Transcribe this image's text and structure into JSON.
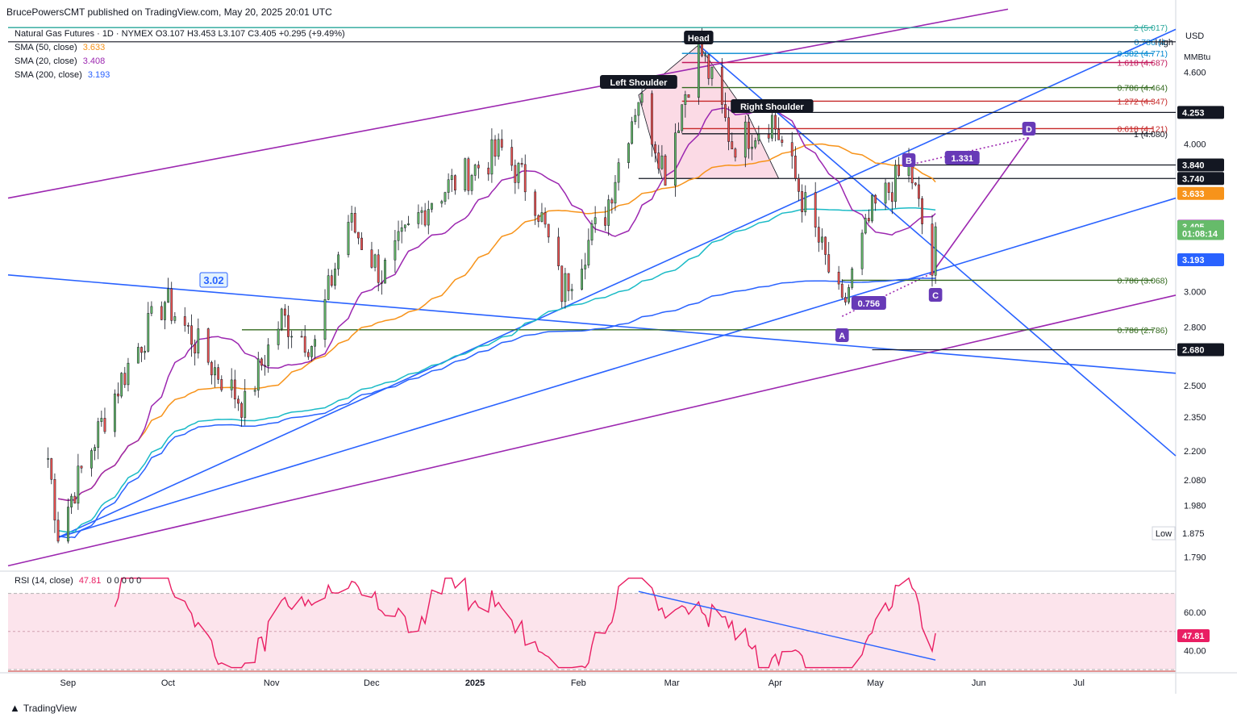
{
  "header": {
    "published": "BrucePowersCMT published on TradingView.com, May 20, 2025 20:01 UTC"
  },
  "legend": {
    "symbol_line": "Natural Gas Futures · 1D · NYMEX  O3.107  H3.453  L3.107  C3.405  +0.295 (+9.49%)",
    "sma50_label": "SMA (50, close)",
    "sma50_value": "3.633",
    "sma20_label": "SMA (20, close)",
    "sma20_value": "3.408",
    "sma200_label": "SMA (200, close)",
    "sma200_value": "3.193"
  },
  "rsi": {
    "label": "RSI (14, close)",
    "value": "47.81",
    "extra": "0 0 0 0 0",
    "ticks": [
      "60.00",
      "40.00"
    ],
    "ylim": [
      30,
      80
    ],
    "upper": 70,
    "lower": 30,
    "mid": 50,
    "tag": "47.81"
  },
  "footer": {
    "brand": "TradingView"
  },
  "colors": {
    "up": "#66bb6a",
    "down": "#ef5350",
    "sma20": "#9c27b0",
    "sma50": "#f7931a",
    "sma200": "#2962ff",
    "teal": "#1bbbc6",
    "trend_blue": "#2962ff",
    "trend_purple": "#9c27b0",
    "fib_green": "#33691e",
    "fib_red": "#c62828",
    "fib_magenta": "#c2185b",
    "fib_teal": "#26a69a",
    "pattern_fill": "#f8bbd0",
    "rsi_line": "#e91e63",
    "rsi_fill": "#fce4ec"
  },
  "chart_data": {
    "type": "candlestick",
    "title": "Natural Gas Futures · 1D · NYMEX",
    "unit_label": "USD",
    "unit_sub": "MMBtu",
    "ylim": [
      1.75,
      5.05
    ],
    "log_scale": true,
    "x_months": [
      "Sep",
      "Oct",
      "Nov",
      "Dec",
      "2025",
      "Feb",
      "Mar",
      "Apr",
      "May",
      "Jun",
      "Jul"
    ],
    "y_ticks": [
      "4.600",
      "4.000",
      "3.000",
      "2.800",
      "2.500",
      "2.350",
      "2.200",
      "2.080",
      "1.980",
      "1.790"
    ],
    "price_tags": [
      {
        "label": "4.253",
        "value": 4.253,
        "bg": "#131722"
      },
      {
        "label": "3.840",
        "value": 3.84,
        "bg": "#131722"
      },
      {
        "label": "3.740",
        "value": 3.74,
        "bg": "#131722"
      },
      {
        "label": "3.633",
        "value": 3.633,
        "bg": "#f7931a"
      },
      {
        "label": "3.408",
        "value": 3.408,
        "bg": "#9c27b0"
      },
      {
        "label": "3.405",
        "value": 3.405,
        "bg": "#66bb6a"
      },
      {
        "label": "01:08:14",
        "value": 3.36,
        "bg": "#66bb6a"
      },
      {
        "label": "3.193",
        "value": 3.193,
        "bg": "#2962ff"
      },
      {
        "label": "2.680",
        "value": 2.68,
        "bg": "#131722"
      }
    ],
    "high_label": "High",
    "low_label": "Low",
    "low_value": "1.875",
    "fib_levels": [
      {
        "label": "2 (5.017)",
        "value": 5.017
      },
      {
        "label": "0.786 (4.",
        "value": 4.88
      },
      {
        "label": "0.382 (4.771)",
        "value": 4.771
      },
      {
        "label": "1.618 (4.687)",
        "value": 4.687
      },
      {
        "label": "0.786 (4.464)",
        "value": 4.464
      },
      {
        "label": "1.272 (4.347)",
        "value": 4.347
      },
      {
        "label": "0.618 (4.121)",
        "value": 4.121
      },
      {
        "label": "1 (4.080)",
        "value": 4.08
      },
      {
        "label": "0.786 (3.068)",
        "value": 3.068
      },
      {
        "label": "0.786 (2.786)",
        "value": 2.786
      }
    ],
    "pattern_labels": {
      "head": "Head",
      "left_shoulder": "Left Shoulder",
      "right_shoulder": "Right Shoulder",
      "a": "A",
      "b": "B",
      "c": "C",
      "d": "D",
      "ratio_bc": "0.756",
      "ratio_cd": "1.331",
      "neck_value": "3.02"
    },
    "candles_monthly_path": [
      {
        "date": "2024-08-27",
        "close": 2.17
      },
      {
        "date": "2024-08-30",
        "close": 1.88
      },
      {
        "date": "2024-09-10",
        "close": 2.25
      },
      {
        "date": "2024-09-20",
        "close": 2.6
      },
      {
        "date": "2024-10-01",
        "close": 2.95
      },
      {
        "date": "2024-10-15",
        "close": 2.6
      },
      {
        "date": "2024-10-25",
        "close": 2.4
      },
      {
        "date": "2024-11-05",
        "close": 2.85
      },
      {
        "date": "2024-11-15",
        "close": 2.7
      },
      {
        "date": "2024-11-25",
        "close": 3.45
      },
      {
        "date": "2024-12-05",
        "close": 3.1
      },
      {
        "date": "2024-12-20",
        "close": 3.6
      },
      {
        "date": "2025-01-10",
        "close": 3.95
      },
      {
        "date": "2025-01-20",
        "close": 3.6
      },
      {
        "date": "2025-01-28",
        "close": 3.0
      },
      {
        "date": "2025-02-10",
        "close": 3.5
      },
      {
        "date": "2025-02-20",
        "close": 4.4
      },
      {
        "date": "2025-02-28",
        "close": 3.8
      },
      {
        "date": "2025-03-10",
        "close": 4.85
      },
      {
        "date": "2025-03-20",
        "close": 4.0
      },
      {
        "date": "2025-04-01",
        "close": 4.2
      },
      {
        "date": "2025-04-10",
        "close": 3.6
      },
      {
        "date": "2025-04-22",
        "close": 2.89
      },
      {
        "date": "2025-05-01",
        "close": 3.5
      },
      {
        "date": "2025-05-12",
        "close": 3.84
      },
      {
        "date": "2025-05-19",
        "close": 3.11
      },
      {
        "date": "2025-05-20",
        "close": 3.405
      }
    ]
  }
}
